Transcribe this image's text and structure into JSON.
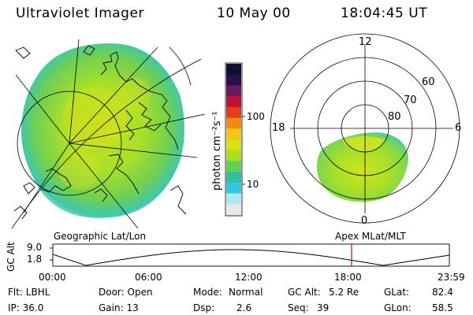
{
  "header": {
    "title": "Ultraviolet Imager",
    "date": "10 May 00",
    "time": "18:04:45 UT"
  },
  "colorbar": {
    "unit_label": "photon cm⁻²s⁻¹",
    "ticks": [
      "100",
      "10"
    ],
    "colors": [
      "#101030",
      "#28104a",
      "#6a1a5a",
      "#c0103a",
      "#e83a20",
      "#f08a10",
      "#f0c810",
      "#d8e010",
      "#a8e020",
      "#60d050",
      "#30c0a0",
      "#30c8e0",
      "#b0e8f0",
      "#e8e8e8"
    ]
  },
  "geo_map": {
    "label": "Geographic Lat/Lon"
  },
  "polar_plot": {
    "label": "Apex  MLat/MLT",
    "mlt_labels": {
      "top": "12",
      "left": "18",
      "right": "6",
      "bottom": "0"
    },
    "lat_labels": [
      "60",
      "70",
      "80"
    ]
  },
  "altitude_plot": {
    "ylabel": "GC Alt",
    "yticks": [
      "9.0",
      "1.8"
    ],
    "xticks": [
      "00:00",
      "06:00",
      "12:00",
      "18:00",
      "23:59"
    ],
    "marker_time": "18:04:45",
    "marker_color": "#e00000"
  },
  "info": {
    "row1": {
      "flt": "Flt: LBHL",
      "door": "Door: Open",
      "mode_label": "Mode:",
      "mode_value": "Normal",
      "gcalt_label": "GC Alt:",
      "gcalt_value": "5.2 Re",
      "glat_label": "GLat:",
      "glat_value": "82.4"
    },
    "row2": {
      "ip": "IP: 36.0",
      "gain": "Gain: 13",
      "dsp_label": "Dsp:",
      "dsp_value": "2.6",
      "seq_label": "Seq:",
      "seq_value": "39",
      "glon_label": "GLon:",
      "glon_value": "58.5"
    }
  }
}
